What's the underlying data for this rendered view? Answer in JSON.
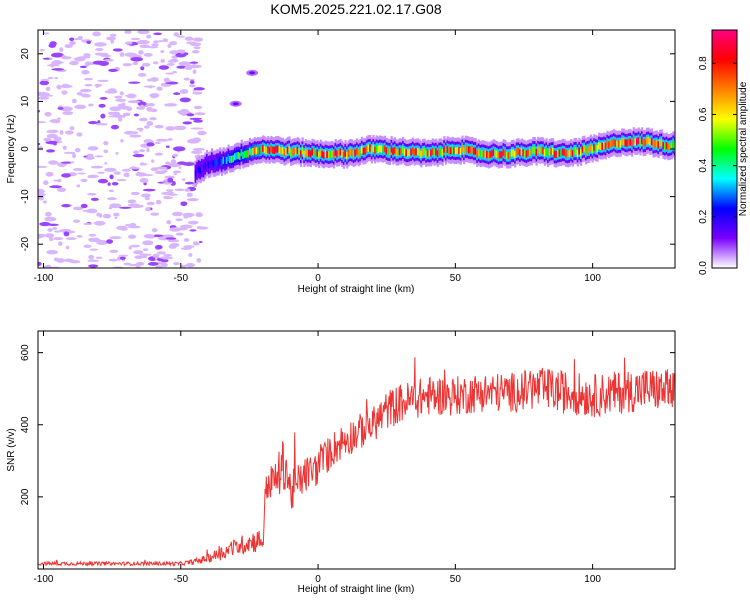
{
  "title": "KOM5.2025.221.02.17.G08",
  "colorbar": {
    "label": "Normalized spectral amplitude",
    "ticks": [
      0.0,
      0.2,
      0.4,
      0.6,
      0.8
    ],
    "tick_labels": [
      "0.0",
      "0.2",
      "0.4",
      "0.6",
      "0.8"
    ],
    "range": [
      0,
      0.93
    ],
    "colormap": [
      "#ffffff",
      "#7a00ff",
      "#0000ff",
      "#00ffff",
      "#00ff00",
      "#ffff00",
      "#ff8000",
      "#ff0000",
      "#ff0080"
    ]
  },
  "chart_data": [
    {
      "type": "heatmap",
      "xlabel": "Height of straight line (km)",
      "ylabel": "Frequency (Hz)",
      "xlim": [
        -102,
        130
      ],
      "ylim": [
        -25,
        25
      ],
      "xticks": [
        -100,
        -50,
        0,
        50,
        100
      ],
      "xtick_labels": [
        "-100",
        "-50",
        "0",
        "50",
        "100"
      ],
      "yticks": [
        -20,
        -10,
        0,
        10,
        20
      ],
      "ytick_labels": [
        "-20",
        "-10",
        "0",
        "10",
        "20"
      ],
      "ridge": {
        "x": [
          -45,
          -40,
          -35,
          -30,
          -25,
          -20,
          -10,
          0,
          10,
          20,
          30,
          40,
          50,
          60,
          70,
          80,
          90,
          100,
          110,
          120,
          130
        ],
        "y": [
          -5,
          -3,
          -2.5,
          -1.5,
          -0.5,
          0,
          -0.5,
          -1,
          -1,
          0,
          -0.5,
          -1,
          0,
          -1,
          -1,
          -0.5,
          -1,
          0,
          1.5,
          1.5,
          0.5
        ],
        "peak_amplitude": 0.9
      },
      "noise_region_x": [
        -102,
        -42
      ],
      "isolated_blobs": [
        {
          "x": -30,
          "y": 9.5
        },
        {
          "x": -24,
          "y": 16
        }
      ]
    },
    {
      "type": "line",
      "xlabel": "Height of straight line (km)",
      "ylabel": "SNR (v/v)",
      "xlim": [
        -102,
        130
      ],
      "ylim": [
        0,
        660
      ],
      "xticks": [
        -100,
        -50,
        0,
        50,
        100
      ],
      "xtick_labels": [
        "-100",
        "-50",
        "0",
        "50",
        "100"
      ],
      "yticks": [
        200,
        400,
        600
      ],
      "ytick_labels": [
        "200",
        "400",
        "600"
      ],
      "color": "#ee3333",
      "series": [
        {
          "x": [
            -102,
            -90,
            -80,
            -70,
            -60,
            -50,
            -45,
            -40,
            -35,
            -30,
            -25,
            -20,
            -19,
            -15,
            -12,
            -10,
            -5,
            0,
            5,
            10,
            15,
            20,
            25,
            30,
            35,
            40,
            50,
            60,
            70,
            80,
            90,
            100,
            110,
            120,
            130
          ],
          "values": [
            15,
            15,
            15,
            15,
            15,
            15,
            20,
            30,
            45,
            60,
            75,
            80,
            230,
            250,
            300,
            210,
            260,
            280,
            330,
            360,
            380,
            400,
            440,
            460,
            470,
            480,
            480,
            490,
            490,
            500,
            490,
            480,
            490,
            500,
            490
          ],
          "noise": [
            5,
            5,
            5,
            5,
            5,
            5,
            8,
            12,
            20,
            25,
            30,
            35,
            40,
            60,
            80,
            60,
            50,
            50,
            50,
            50,
            50,
            50,
            55,
            55,
            55,
            55,
            55,
            55,
            55,
            60,
            60,
            60,
            60,
            60,
            60
          ]
        }
      ]
    }
  ]
}
